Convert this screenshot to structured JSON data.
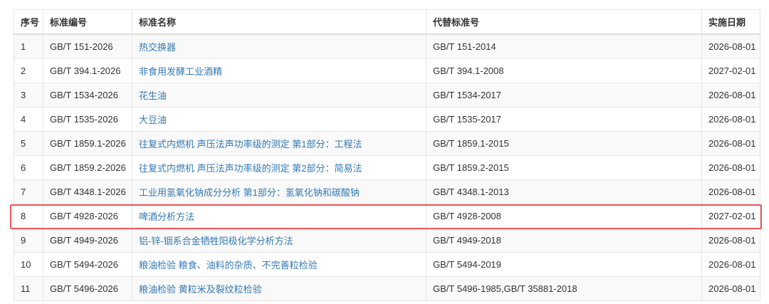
{
  "headers": [
    "序号",
    "标准编号",
    "标准名称",
    "代替标准号",
    "实施日期"
  ],
  "rows": [
    [
      "1",
      "GB/T 151-2026",
      "热交换器",
      "GB/T 151-2014",
      "2026-08-01"
    ],
    [
      "2",
      "GB/T 394.1-2026",
      "非食用发酵工业酒精",
      "GB/T 394.1-2008",
      "2027-02-01"
    ],
    [
      "3",
      "GB/T 1534-2026",
      "花生油",
      "GB/T 1534-2017",
      "2026-08-01"
    ],
    [
      "4",
      "GB/T 1535-2026",
      "大豆油",
      "GB/T 1535-2017",
      "2026-08-01"
    ],
    [
      "5",
      "GB/T 1859.1-2026",
      "往复式内燃机 声压法声功率级的测定 第1部分：工程法",
      "GB/T 1859.1-2015",
      "2026-08-01"
    ],
    [
      "6",
      "GB/T 1859.2-2026",
      "往复式内燃机 声压法声功率级的测定 第2部分：简易法",
      "GB/T 1859.2-2015",
      "2026-08-01"
    ],
    [
      "7",
      "GB/T 4348.1-2026",
      "工业用氢氧化钠成分分析 第1部分：氢氧化钠和碳酸钠",
      "GB/T 4348.1-2013",
      "2026-08-01"
    ],
    [
      "8",
      "GB/T 4928-2026",
      "啤酒分析方法",
      "GB/T 4928-2008",
      "2027-02-01"
    ],
    [
      "9",
      "GB/T 4949-2026",
      "铝-锌-铟系合金牺牲阳极化学分析方法",
      "GB/T 4949-2018",
      "2026-08-01"
    ],
    [
      "10",
      "GB/T 5494-2026",
      "粮油检验 粮食、油料的杂质、不完善粒检验",
      "GB/T 5494-2019",
      "2026-08-01"
    ],
    [
      "11",
      "GB/T 5496-2026",
      "粮油检验 黄粒米及裂纹粒检验",
      "GB/T 5496-1985,GB/T 35881-2018",
      "2026-08-01"
    ]
  ],
  "highlighted_row": "8",
  "colors": {
    "link": "#337ab7",
    "highlight": "#f0565a",
    "stripe": "#f9f9f9"
  }
}
